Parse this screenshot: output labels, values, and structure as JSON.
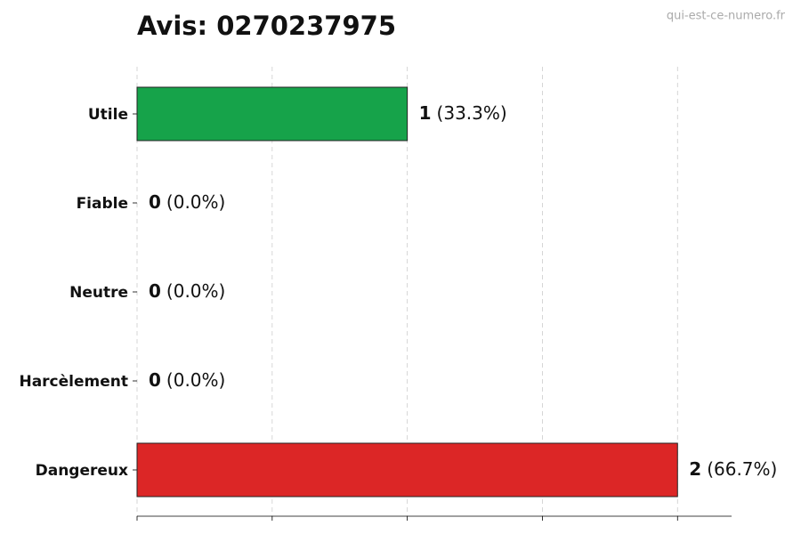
{
  "chart_data": {
    "type": "bar",
    "orientation": "horizontal",
    "title": "Avis: 0270237975",
    "watermark": "qui-est-ce-numero.fr",
    "categories": [
      "Utile",
      "Fiable",
      "Neutre",
      "Harcèlement",
      "Dangereux"
    ],
    "values": [
      1,
      0,
      0,
      0,
      2
    ],
    "percentages": [
      33.3,
      0.0,
      0.0,
      0.0,
      66.7
    ],
    "percentage_labels": [
      "(33.3%)",
      "(0.0%)",
      "(0.0%)",
      "(0.0%)",
      "(66.7%)"
    ],
    "colors": [
      "#16a34a",
      "#2563eb",
      "#6b7280",
      "#f59e0b",
      "#dc2626"
    ],
    "xlim": [
      0,
      2.2
    ],
    "xticks": [
      0,
      0.5,
      1,
      1.5,
      2
    ],
    "grid": true
  }
}
